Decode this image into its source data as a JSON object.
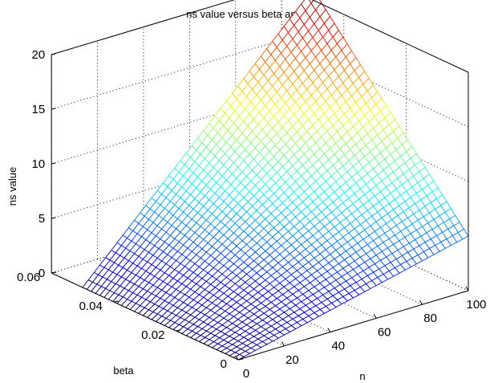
{
  "chart_data": {
    "type": "surface",
    "title": "ns value versus beta and n",
    "xlabel": "n",
    "ylabel": "beta",
    "zlabel": "ns value",
    "xlim": [
      0,
      100
    ],
    "ylim": [
      0,
      0.06
    ],
    "zlim": [
      0,
      20
    ],
    "x_ticks": [
      "0",
      "20",
      "40",
      "60",
      "80",
      "100"
    ],
    "y_ticks": [
      "0",
      "0.02",
      "0.04",
      "0.06"
    ],
    "z_ticks": [
      "0",
      "5",
      "10",
      "15",
      "20"
    ],
    "grid": true,
    "colormap": "jet",
    "n_range": [
      0,
      100
    ],
    "beta_range": [
      0,
      0.05
    ],
    "corner_values": {
      "n0_beta0": 0,
      "n0_beta005": 0,
      "n100_beta0": 5,
      "n100_beta005": 21
    }
  }
}
